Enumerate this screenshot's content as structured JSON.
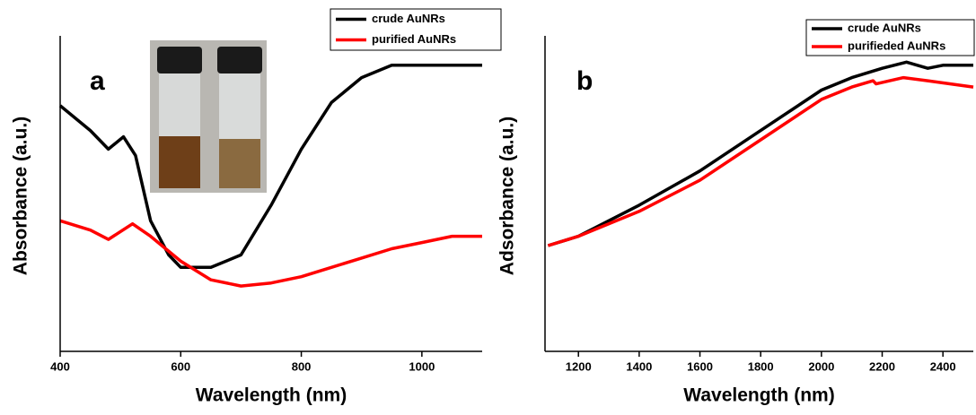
{
  "chart_data": [
    {
      "type": "line",
      "annotation": "a",
      "x_label": "Wavelength (nm)",
      "y_label": "Absorbance (a.u.)",
      "xlim": [
        400,
        1100
      ],
      "xticks": [
        400,
        600,
        800,
        1000
      ],
      "ylim": [
        0,
        1
      ],
      "series": [
        {
          "name": "crude AuNRs",
          "color": "#000000",
          "x": [
            400,
            450,
            480,
            505,
            525,
            550,
            580,
            600,
            650,
            700,
            750,
            800,
            850,
            900,
            950,
            1000,
            1100
          ],
          "values": [
            0.79,
            0.71,
            0.65,
            0.69,
            0.63,
            0.42,
            0.31,
            0.27,
            0.27,
            0.31,
            0.47,
            0.65,
            0.8,
            0.88,
            0.92,
            0.92,
            0.92
          ]
        },
        {
          "name": "purified AuNRs",
          "color": "#ff0000",
          "x": [
            400,
            450,
            480,
            520,
            550,
            600,
            650,
            700,
            750,
            800,
            850,
            900,
            950,
            1000,
            1050,
            1100
          ],
          "values": [
            0.42,
            0.39,
            0.36,
            0.41,
            0.37,
            0.29,
            0.23,
            0.21,
            0.22,
            0.24,
            0.27,
            0.3,
            0.33,
            0.35,
            0.37,
            0.37
          ]
        }
      ]
    },
    {
      "type": "line",
      "annotation": "b",
      "x_label": "Wavelength (nm)",
      "y_label": "Adsorbance (a.u.)",
      "xlim": [
        1090,
        2500
      ],
      "xticks": [
        1200,
        1400,
        1600,
        1800,
        2000,
        2200,
        2400
      ],
      "ylim": [
        0,
        1
      ],
      "series": [
        {
          "name": "crude AuNRs",
          "color": "#000000",
          "x": [
            1100,
            1200,
            1400,
            1600,
            1800,
            2000,
            2100,
            2200,
            2280,
            2350,
            2400,
            2500
          ],
          "values": [
            0.34,
            0.37,
            0.47,
            0.58,
            0.71,
            0.84,
            0.88,
            0.91,
            0.93,
            0.91,
            0.92,
            0.92
          ]
        },
        {
          "name": "purifieded AuNRs",
          "color": "#ff0000",
          "x": [
            1100,
            1200,
            1400,
            1600,
            1800,
            2000,
            2100,
            2170,
            2180,
            2270,
            2350,
            2500
          ],
          "values": [
            0.34,
            0.37,
            0.45,
            0.55,
            0.68,
            0.81,
            0.85,
            0.87,
            0.86,
            0.88,
            0.87,
            0.85
          ]
        }
      ]
    }
  ]
}
